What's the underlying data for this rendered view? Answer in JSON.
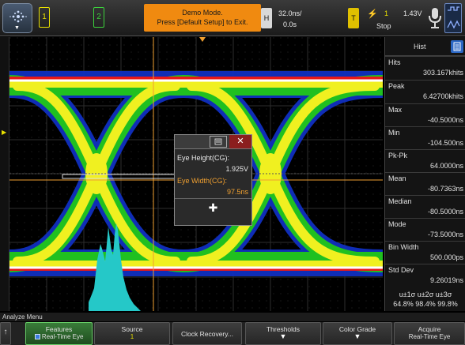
{
  "topbar": {
    "channel_1": "1",
    "channel_2": "2",
    "demo_line1": "Demo Mode.",
    "demo_line2": "Press [Default Setup] to Exit.",
    "horizontal_label": "H",
    "timebase_scale": "32.0ns/",
    "timebase_delay": "0.0s",
    "trigger_label": "T",
    "trigger_channel": "1",
    "trigger_level": "1.43V",
    "acquisition_state": "Stop"
  },
  "side_panel": {
    "title": "Hist",
    "stats": [
      {
        "label": "Hits",
        "value": "303.167khits"
      },
      {
        "label": "Peak",
        "value": "6.42700khits"
      },
      {
        "label": "Max",
        "value": "-40.5000ns"
      },
      {
        "label": "Min",
        "value": "-104.500ns"
      },
      {
        "label": "Pk-Pk",
        "value": "64.0000ns"
      },
      {
        "label": "Mean",
        "value": "-80.7363ns"
      },
      {
        "label": "Median",
        "value": "-80.5000ns"
      },
      {
        "label": "Mode",
        "value": "-73.5000ns"
      },
      {
        "label": "Bin Width",
        "value": "500.000ps"
      },
      {
        "label": "Std Dev",
        "value": "9.26019ns"
      }
    ],
    "sigma_header": "u±1σ  u±2σ  u±3σ",
    "sigma_values": "64.8% 98.4% 99.8%"
  },
  "eye_dialog": {
    "height_label": "Eye Height(CG):",
    "height_value": "1.925V",
    "width_label": "Eye Width(CG):",
    "width_value": "97.5ns"
  },
  "menu": {
    "title": "Analyze Menu",
    "softkeys": {
      "features_title": "Features",
      "features_value": "Real-Time Eye",
      "source_title": "Source",
      "source_value": "1",
      "clock_recovery": "Clock Recovery...",
      "thresholds": "Thresholds",
      "color_grade": "Color Grade",
      "acquire_title": "Acquire",
      "acquire_value": "Real-Time Eye"
    }
  },
  "colors": {
    "channel1": "#e8e000",
    "channel2": "#3cd23c",
    "demo_banner": "#f08a10",
    "histogram": "#25c8c8",
    "cursor": "#f0a030",
    "softkey_active": "#3a7c3a"
  }
}
